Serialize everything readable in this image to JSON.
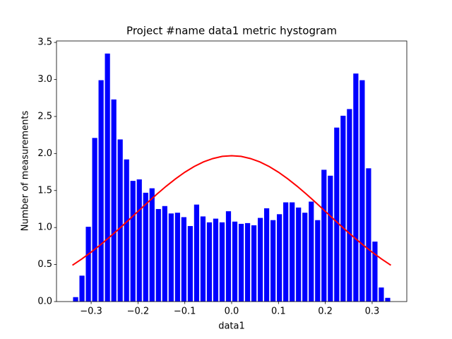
{
  "chart_data": {
    "type": "histogram",
    "title": "Project #name data1 metric hystogram",
    "x_label": "data1",
    "y_label": "Number of measurements",
    "color": "#0000ff",
    "bins": [
      -0.34,
      -0.3264,
      -0.3128,
      -0.2992,
      -0.2856,
      -0.272,
      -0.2584,
      -0.2448,
      -0.2312,
      -0.2176,
      -0.204,
      -0.1904,
      -0.1768,
      -0.1632,
      -0.1496,
      -0.136,
      -0.1224,
      -0.1088,
      -0.0952,
      -0.0816,
      -0.068,
      -0.0544,
      -0.0408,
      -0.0272,
      -0.0136,
      0,
      0.0136,
      0.0272,
      0.0408,
      0.0544,
      0.068,
      0.0816,
      0.0952,
      0.1088,
      0.1224,
      0.136,
      0.1496,
      0.1632,
      0.1768,
      0.1904,
      0.204,
      0.2176,
      0.2312,
      0.2448,
      0.2584,
      0.272,
      0.2856,
      0.2992,
      0.3128,
      0.3264,
      0.34
    ],
    "values": [
      0.06,
      0.35,
      1.01,
      2.21,
      2.99,
      3.35,
      2.73,
      2.19,
      1.92,
      1.63,
      1.65,
      1.47,
      1.53,
      1.25,
      1.29,
      1.19,
      1.2,
      1.14,
      1.02,
      1.31,
      1.15,
      1.07,
      1.12,
      1.07,
      1.22,
      1.08,
      1.05,
      1.06,
      1.03,
      1.13,
      1.26,
      1.1,
      1.18,
      1.34,
      1.34,
      1.27,
      1.2,
      1.35,
      1.1,
      1.78,
      1.7,
      2.35,
      2.51,
      2.6,
      3.08,
      2.99,
      1.8,
      0.81,
      0.19,
      0.05
    ],
    "curve": {
      "color": "#ff0000",
      "x": [
        -0.34,
        -0.32,
        -0.3,
        -0.28,
        -0.26,
        -0.24,
        -0.22,
        -0.2,
        -0.18,
        -0.16,
        -0.14,
        -0.12,
        -0.1,
        -0.08,
        -0.06,
        -0.04,
        -0.02,
        0,
        0.02,
        0.04,
        0.06,
        0.08,
        0.1,
        0.12,
        0.14,
        0.16,
        0.18,
        0.2,
        0.22,
        0.24,
        0.26,
        0.28,
        0.3,
        0.32,
        0.34
      ],
      "values": [
        0.491,
        0.575,
        0.668,
        0.768,
        0.874,
        0.985,
        1.101,
        1.218,
        1.335,
        1.449,
        1.557,
        1.657,
        1.747,
        1.824,
        1.887,
        1.932,
        1.961,
        1.97,
        1.961,
        1.932,
        1.887,
        1.824,
        1.747,
        1.657,
        1.557,
        1.449,
        1.335,
        1.218,
        1.101,
        0.985,
        0.874,
        0.768,
        0.668,
        0.575,
        0.491
      ]
    },
    "xlim": [
      -0.374,
      0.374
    ],
    "ylim": [
      0,
      3.52
    ],
    "xticks": [
      {
        "value": -0.3,
        "label": "−0.3"
      },
      {
        "value": -0.2,
        "label": "−0.2"
      },
      {
        "value": -0.1,
        "label": "−0.1"
      },
      {
        "value": 0,
        "label": "0.0"
      },
      0.1,
      0.2,
      0.3
    ],
    "yticks": [
      {
        "value": 0,
        "label": "0.0"
      },
      0.5,
      {
        "value": 1,
        "label": "1.0"
      },
      1.5,
      {
        "value": 2,
        "label": "2.0"
      },
      2.5,
      {
        "value": 3,
        "label": "3.0"
      },
      3.5
    ]
  }
}
